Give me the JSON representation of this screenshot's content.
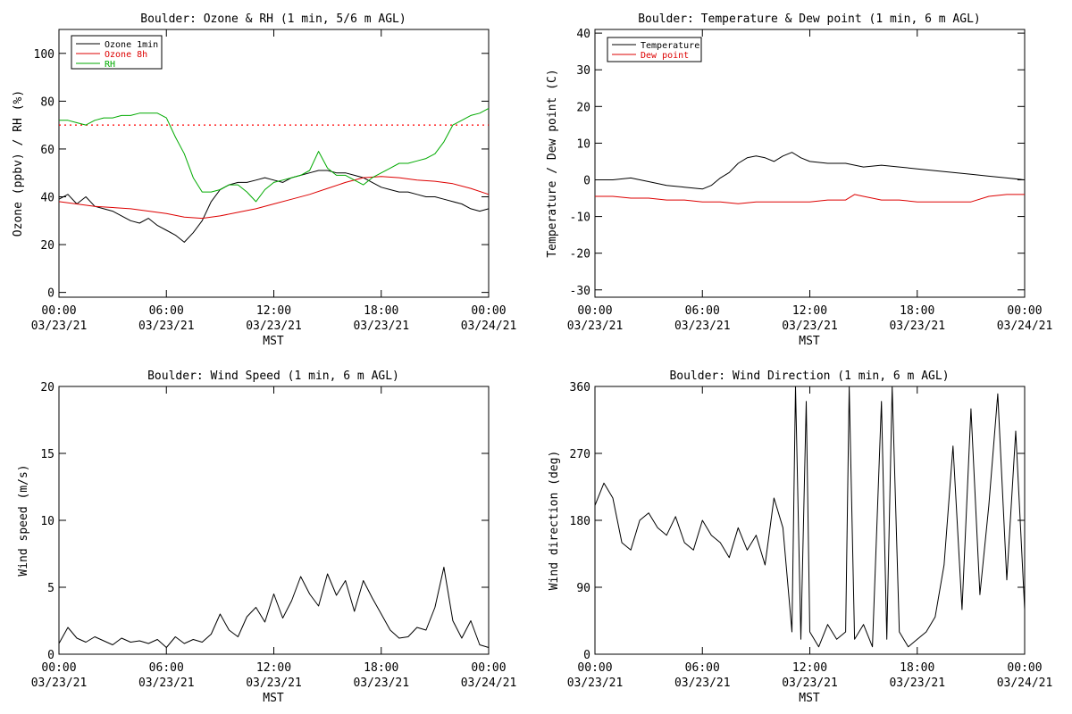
{
  "chart_data": [
    {
      "type": "line",
      "title": "Boulder: Ozone & RH (1 min, 5/6 m AGL)",
      "ylabel": "Ozone (ppbv) / RH (%)",
      "xlabel": "MST",
      "xlim": [
        0,
        24
      ],
      "ylim": [
        -2,
        110
      ],
      "yticks": [
        0,
        20,
        40,
        60,
        80,
        100
      ],
      "xticks": [
        {
          "x": 0,
          "time": "00:00",
          "date": "03/23/21"
        },
        {
          "x": 6,
          "time": "06:00",
          "date": "03/23/21"
        },
        {
          "x": 12,
          "time": "12:00",
          "date": "03/23/21"
        },
        {
          "x": 18,
          "time": "18:00",
          "date": "03/23/21"
        },
        {
          "x": 24,
          "time": "00:00",
          "date": "03/24/21"
        }
      ],
      "legend": {
        "placement": "top-left",
        "labels": [
          "Ozone 1min",
          "Ozone 8h",
          "RH"
        ]
      },
      "reference_line": {
        "y": 70,
        "color": "#ff0000",
        "style": "dotted"
      },
      "series": [
        {
          "name": "Ozone 1min",
          "color": "#000000",
          "x": [
            0,
            0.5,
            1,
            1.5,
            2,
            2.5,
            3,
            3.5,
            4,
            4.5,
            5,
            5.5,
            6,
            6.5,
            7,
            7.5,
            8,
            8.5,
            9,
            9.5,
            10,
            10.5,
            11,
            11.5,
            12,
            12.5,
            13,
            13.5,
            14,
            14.5,
            15,
            15.5,
            16,
            16.5,
            17,
            17.5,
            18,
            18.5,
            19,
            19.5,
            20,
            20.5,
            21,
            21.5,
            22,
            22.5,
            23,
            23.5,
            24
          ],
          "y": [
            39,
            41,
            37,
            40,
            36,
            35,
            34,
            32,
            30,
            29,
            31,
            28,
            26,
            24,
            21,
            25,
            30,
            38,
            43,
            45,
            46,
            46,
            47,
            48,
            47,
            46,
            48,
            49,
            50,
            51,
            51,
            50,
            50,
            49,
            48,
            46,
            44,
            43,
            42,
            42,
            41,
            40,
            40,
            39,
            38,
            37,
            35,
            34,
            35
          ]
        },
        {
          "name": "Ozone 8h",
          "color": "#dd0000",
          "x": [
            0,
            2,
            4,
            6,
            7,
            8,
            9,
            10,
            11,
            12,
            13,
            14,
            15,
            16,
            17,
            18,
            19,
            20,
            21,
            22,
            23,
            24
          ],
          "y": [
            38,
            36,
            35,
            33,
            31.5,
            31,
            32,
            33.5,
            35,
            37,
            39,
            41,
            43.5,
            46,
            48,
            48.5,
            48,
            47,
            46.5,
            45.5,
            43.5,
            41
          ]
        },
        {
          "name": "RH",
          "color": "#00aa00",
          "x": [
            0,
            0.5,
            1,
            1.5,
            2,
            2.5,
            3,
            3.5,
            4,
            4.5,
            5,
            5.5,
            6,
            6.5,
            7,
            7.5,
            8,
            8.5,
            9,
            9.5,
            10,
            10.5,
            11,
            11.5,
            12,
            12.5,
            13,
            13.5,
            14,
            14.5,
            15,
            15.5,
            16,
            16.5,
            17,
            17.5,
            18,
            18.5,
            19,
            19.5,
            20,
            20.5,
            21,
            21.5,
            22,
            22.5,
            23,
            23.5,
            24
          ],
          "y": [
            72,
            72,
            71,
            70,
            72,
            73,
            73,
            74,
            74,
            75,
            75,
            75,
            73,
            65,
            58,
            48,
            42,
            42,
            43,
            45,
            45,
            42,
            38,
            43,
            46,
            47,
            48,
            49,
            51,
            59,
            52,
            49,
            49,
            47,
            45,
            48,
            50,
            52,
            54,
            54,
            55,
            56,
            58,
            63,
            70,
            72,
            74,
            75,
            77
          ]
        }
      ]
    },
    {
      "type": "line",
      "title": "Boulder: Temperature & Dew point (1 min, 6 m AGL)",
      "ylabel": "Temperature / Dew point (C)",
      "xlabel": "MST",
      "xlim": [
        0,
        24
      ],
      "ylim": [
        -32,
        41
      ],
      "yticks": [
        -30,
        -20,
        -10,
        0,
        10,
        20,
        30,
        40
      ],
      "xticks": [
        {
          "x": 0,
          "time": "00:00",
          "date": "03/23/21"
        },
        {
          "x": 6,
          "time": "06:00",
          "date": "03/23/21"
        },
        {
          "x": 12,
          "time": "12:00",
          "date": "03/23/21"
        },
        {
          "x": 18,
          "time": "18:00",
          "date": "03/23/21"
        },
        {
          "x": 24,
          "time": "00:00",
          "date": "03/24/21"
        }
      ],
      "legend": {
        "placement": "top-left",
        "labels": [
          "Temperature",
          "Dew point"
        ]
      },
      "series": [
        {
          "name": "Temperature",
          "color": "#000000",
          "x": [
            0,
            1,
            2,
            3,
            4,
            5,
            6,
            6.5,
            7,
            7.5,
            8,
            8.5,
            9,
            9.5,
            10,
            10.5,
            11,
            11.5,
            12,
            13,
            14,
            15,
            16,
            17,
            18,
            19,
            20,
            21,
            22,
            23,
            24
          ],
          "y": [
            0,
            0,
            0.5,
            -0.5,
            -1.5,
            -2,
            -2.5,
            -1.5,
            0.5,
            2,
            4.5,
            6,
            6.5,
            6,
            5,
            6.5,
            7.5,
            6,
            5,
            4.5,
            4.5,
            3.5,
            4,
            3.5,
            3,
            2.5,
            2,
            1.5,
            1,
            0.5,
            0
          ]
        },
        {
          "name": "Dew point",
          "color": "#dd0000",
          "x": [
            0,
            1,
            2,
            3,
            4,
            5,
            6,
            7,
            8,
            9,
            10,
            11,
            12,
            13,
            14,
            14.5,
            15,
            16,
            17,
            18,
            19,
            20,
            21,
            22,
            23,
            24
          ],
          "y": [
            -4.5,
            -4.5,
            -5,
            -5,
            -5.5,
            -5.5,
            -6,
            -6,
            -6.5,
            -6,
            -6,
            -6,
            -6,
            -5.5,
            -5.5,
            -4,
            -4.5,
            -5.5,
            -5.5,
            -6,
            -6,
            -6,
            -6,
            -4.5,
            -4,
            -4
          ]
        }
      ]
    },
    {
      "type": "line",
      "title": "Boulder: Wind Speed (1 min, 6 m AGL)",
      "ylabel": "Wind speed (m/s)",
      "xlabel": "MST",
      "xlim": [
        0,
        24
      ],
      "ylim": [
        0,
        20
      ],
      "yticks": [
        0,
        5,
        10,
        15,
        20
      ],
      "xticks": [
        {
          "x": 0,
          "time": "00:00",
          "date": "03/23/21"
        },
        {
          "x": 6,
          "time": "06:00",
          "date": "03/23/21"
        },
        {
          "x": 12,
          "time": "12:00",
          "date": "03/23/21"
        },
        {
          "x": 18,
          "time": "18:00",
          "date": "03/23/21"
        },
        {
          "x": 24,
          "time": "00:00",
          "date": "03/24/21"
        }
      ],
      "series": [
        {
          "color": "#000000",
          "x": [
            0,
            0.5,
            1,
            1.5,
            2,
            2.5,
            3,
            3.5,
            4,
            4.5,
            5,
            5.5,
            6,
            6.5,
            7,
            7.5,
            8,
            8.5,
            9,
            9.5,
            10,
            10.5,
            11,
            11.5,
            12,
            12.5,
            13,
            13.5,
            14,
            14.5,
            15,
            15.5,
            16,
            16.5,
            17,
            17.5,
            18,
            18.5,
            19,
            19.5,
            20,
            20.5,
            21,
            21.5,
            22,
            22.5,
            23,
            23.5,
            24
          ],
          "y": [
            0.8,
            2,
            1.2,
            0.9,
            1.3,
            1,
            0.7,
            1.2,
            0.9,
            1,
            0.8,
            1.1,
            0.5,
            1.3,
            0.8,
            1.1,
            0.9,
            1.5,
            3,
            1.8,
            1.3,
            2.8,
            3.5,
            2.4,
            4.5,
            2.7,
            4,
            5.8,
            4.5,
            3.6,
            6,
            4.4,
            5.5,
            3.2,
            5.5,
            4.2,
            3,
            1.8,
            1.2,
            1.3,
            2,
            1.8,
            3.5,
            6.5,
            2.5,
            1.2,
            2.5,
            0.7,
            0.5
          ]
        }
      ]
    },
    {
      "type": "line",
      "title": "Boulder: Wind Direction (1 min, 6 m AGL)",
      "ylabel": "Wind direction (deg)",
      "xlabel": "MST",
      "xlim": [
        0,
        24
      ],
      "ylim": [
        0,
        360
      ],
      "yticks": [
        0,
        90,
        180,
        270,
        360
      ],
      "xticks": [
        {
          "x": 0,
          "time": "00:00",
          "date": "03/23/21"
        },
        {
          "x": 6,
          "time": "06:00",
          "date": "03/23/21"
        },
        {
          "x": 12,
          "time": "12:00",
          "date": "03/23/21"
        },
        {
          "x": 18,
          "time": "18:00",
          "date": "03/23/21"
        },
        {
          "x": 24,
          "time": "00:00",
          "date": "03/24/21"
        }
      ],
      "series": [
        {
          "color": "#000000",
          "x": [
            0,
            0.5,
            1,
            1.5,
            2,
            2.5,
            3,
            3.5,
            4,
            4.5,
            5,
            5.5,
            6,
            6.5,
            7,
            7.5,
            8,
            8.5,
            9,
            9.5,
            10,
            10.5,
            11,
            11.2,
            11.5,
            11.8,
            12,
            12.5,
            13,
            13.5,
            14,
            14.2,
            14.5,
            15,
            15.5,
            16,
            16.3,
            16.6,
            17,
            17.5,
            18,
            18.5,
            19,
            19.5,
            20,
            20.5,
            21,
            21.5,
            22,
            22.5,
            23,
            23.5,
            24
          ],
          "y": [
            200,
            230,
            210,
            150,
            140,
            180,
            190,
            170,
            160,
            185,
            150,
            140,
            180,
            160,
            150,
            130,
            170,
            140,
            160,
            120,
            210,
            170,
            30,
            360,
            20,
            340,
            30,
            10,
            40,
            20,
            30,
            360,
            20,
            40,
            10,
            340,
            20,
            360,
            30,
            10,
            20,
            30,
            50,
            120,
            280,
            60,
            330,
            80,
            200,
            350,
            100,
            300,
            60
          ]
        }
      ]
    }
  ]
}
